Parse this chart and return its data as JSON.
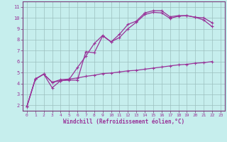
{
  "xlabel": "Windchill (Refroidissement éolien,°C)",
  "background_color": "#c6eeed",
  "line_color": "#993399",
  "grid_color": "#9bbfbf",
  "border_color": "#7a3a7a",
  "xlim": [
    -0.5,
    23.5
  ],
  "ylim": [
    1.5,
    11.5
  ],
  "xticks": [
    0,
    1,
    2,
    3,
    4,
    5,
    6,
    7,
    8,
    9,
    10,
    11,
    12,
    13,
    14,
    15,
    16,
    17,
    18,
    19,
    20,
    21,
    22,
    23
  ],
  "yticks": [
    2,
    3,
    4,
    5,
    6,
    7,
    8,
    9,
    10,
    11
  ],
  "line1_x": [
    0,
    1,
    2,
    3,
    4,
    5,
    6,
    7,
    8,
    9,
    10,
    11,
    12,
    13,
    14,
    15,
    16,
    17,
    18,
    19,
    20,
    21,
    22
  ],
  "line1_y": [
    1.9,
    4.4,
    4.85,
    4.1,
    4.25,
    4.3,
    4.3,
    6.9,
    6.8,
    8.35,
    7.8,
    8.5,
    9.4,
    9.7,
    10.45,
    10.65,
    10.65,
    10.1,
    10.2,
    10.2,
    10.05,
    10.0,
    9.55
  ],
  "line2_x": [
    0,
    1,
    2,
    3,
    4,
    5,
    6,
    7,
    8,
    9,
    10,
    11,
    12,
    13,
    14,
    15,
    16,
    17,
    18,
    19,
    20,
    21,
    22
  ],
  "line2_y": [
    1.9,
    4.4,
    4.85,
    3.6,
    4.25,
    4.35,
    5.45,
    6.5,
    7.65,
    8.4,
    7.8,
    8.2,
    9.0,
    9.6,
    10.3,
    10.5,
    10.45,
    9.95,
    10.15,
    10.2,
    10.05,
    9.8,
    9.2
  ],
  "line3_x": [
    0,
    1,
    2,
    3,
    4,
    5,
    6,
    7,
    8,
    9,
    10,
    11,
    12,
    13,
    14,
    15,
    16,
    17,
    18,
    19,
    20,
    21,
    22
  ],
  "line3_y": [
    1.9,
    4.4,
    4.85,
    4.1,
    4.35,
    4.4,
    4.5,
    4.65,
    4.75,
    4.9,
    4.95,
    5.05,
    5.15,
    5.2,
    5.3,
    5.4,
    5.5,
    5.6,
    5.7,
    5.75,
    5.85,
    5.9,
    6.0
  ]
}
